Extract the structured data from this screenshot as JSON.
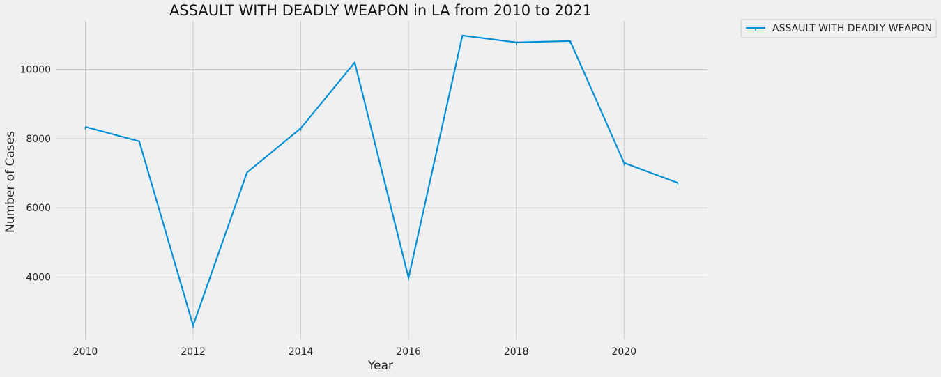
{
  "chart_data": {
    "type": "line",
    "title": "ASSAULT WITH DEADLY WEAPON in LA from 2010 to 2021",
    "xlabel": "Year",
    "ylabel": "Number of Cases",
    "x": [
      2010,
      2011,
      2012,
      2013,
      2014,
      2015,
      2016,
      2017,
      2018,
      2019,
      2020,
      2021
    ],
    "series": [
      {
        "name": "ASSAULT WITH DEADLY WEAPON",
        "color": "#008fd5",
        "values": [
          8340,
          7920,
          2600,
          7020,
          8300,
          10200,
          3980,
          10980,
          10780,
          10820,
          7300,
          6720
        ]
      }
    ],
    "xlim": [
      2009.45,
      2021.55
    ],
    "ylim": [
      2200,
      11400
    ],
    "x_ticks": [
      "2010",
      "2012",
      "2014",
      "2016",
      "2018",
      "2020"
    ],
    "y_ticks": [
      "4000",
      "6000",
      "8000",
      "10000"
    ],
    "grid": true,
    "legend_position": "outside top-right"
  }
}
